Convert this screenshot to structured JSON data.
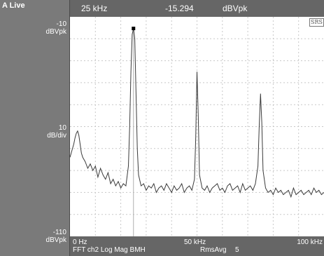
{
  "left_panel": {
    "title": "A Live",
    "top_value": "-10",
    "top_unit": "dBVpk",
    "mid_value": "10",
    "mid_unit": "dB/div",
    "bottom_value": "-110",
    "bottom_unit": "dBVpk"
  },
  "readout": {
    "frequency": "25 kHz",
    "amplitude": "-15.294",
    "unit": "dBVpk"
  },
  "x_axis": {
    "start": "0 Hz",
    "mid": "50 kHz",
    "end": "100 kHz"
  },
  "status": {
    "measurement": "FFT ch2 Log Mag BMH",
    "averaging": "RmsAvg",
    "avg_count": "5"
  },
  "badge": "SRS",
  "chart_data": {
    "type": "line",
    "xlim": [
      0,
      100
    ],
    "ylim": [
      -110,
      -10
    ],
    "marker": {
      "x": 25,
      "y": -15.294
    },
    "peaks": [
      {
        "x": 25,
        "y": -15.3
      },
      {
        "x": 50,
        "y": -35
      },
      {
        "x": 75,
        "y": -45
      }
    ],
    "series": [
      {
        "x": [
          0,
          0.5,
          1,
          1.5,
          2,
          2.5,
          3,
          3.5,
          4,
          4.5,
          5,
          6,
          7,
          8,
          9,
          10,
          11,
          12,
          13,
          14,
          15,
          16,
          17,
          18,
          19,
          20,
          21,
          22,
          23,
          23.5,
          24,
          24.5,
          25,
          25.5,
          26,
          26.5,
          27,
          28,
          29,
          30,
          31,
          32,
          33,
          34,
          35,
          36,
          37,
          38,
          39,
          40,
          41,
          42,
          43,
          44,
          45,
          46,
          47,
          48,
          49,
          49.5,
          50,
          50.5,
          51,
          52,
          53,
          54,
          55,
          56,
          57,
          58,
          59,
          60,
          61,
          62,
          63,
          64,
          65,
          66,
          67,
          68,
          69,
          70,
          71,
          72,
          73,
          74,
          74.5,
          75,
          75.5,
          76,
          77,
          78,
          79,
          80,
          81,
          82,
          83,
          84,
          85,
          86,
          87,
          88,
          89,
          90,
          91,
          92,
          93,
          94,
          95,
          96,
          97,
          98,
          99,
          100
        ],
        "y": [
          -74,
          -72,
          -70,
          -68,
          -65,
          -63,
          -62,
          -64,
          -68,
          -72,
          -74,
          -76,
          -79,
          -77,
          -80,
          -78,
          -83,
          -79,
          -82,
          -84,
          -81,
          -86,
          -84,
          -87,
          -85,
          -88,
          -86,
          -87,
          -78,
          -60,
          -35,
          -18,
          -15.3,
          -20,
          -45,
          -70,
          -82,
          -87,
          -86,
          -89,
          -87,
          -88,
          -86,
          -90,
          -88,
          -87,
          -89,
          -86,
          -88,
          -90,
          -87,
          -89,
          -88,
          -86,
          -90,
          -88,
          -87,
          -89,
          -84,
          -65,
          -35,
          -55,
          -82,
          -88,
          -89,
          -87,
          -90,
          -88,
          -87,
          -86,
          -89,
          -88,
          -90,
          -87,
          -86,
          -89,
          -88,
          -87,
          -90,
          -86,
          -89,
          -88,
          -87,
          -89,
          -86,
          -78,
          -60,
          -45,
          -58,
          -80,
          -88,
          -90,
          -89,
          -91,
          -88,
          -90,
          -89,
          -91,
          -90,
          -89,
          -92,
          -88,
          -91,
          -90,
          -89,
          -91,
          -90,
          -89,
          -91,
          -88,
          -90,
          -89,
          -91,
          -90
        ]
      }
    ]
  }
}
